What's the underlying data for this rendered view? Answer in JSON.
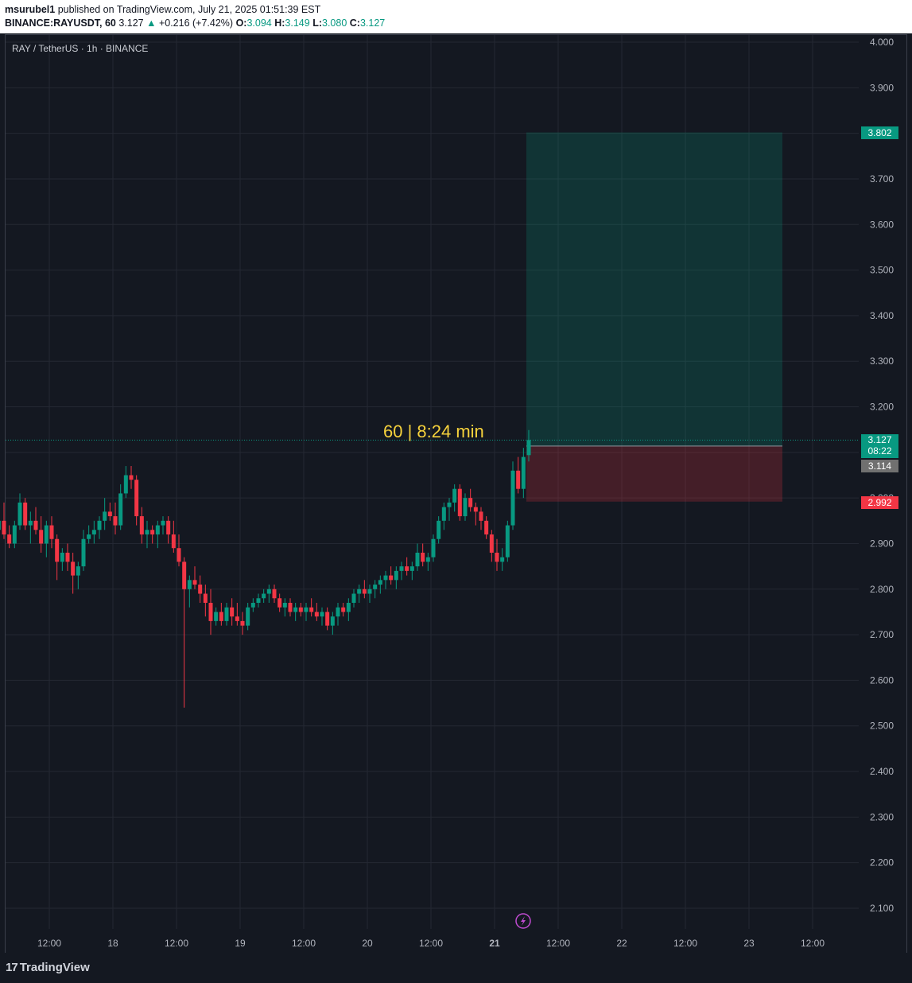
{
  "header": {
    "author": "msurubel1",
    "published_text": " published on TradingView.com, July 21, 2025 01:51:39 EST",
    "symbol": "BINANCE:RAYUSDT, 60",
    "last": "3.127",
    "change": "+0.216 (+7.42%)",
    "open_label": "O:",
    "open": "3.094",
    "high_label": "H:",
    "high": "3.149",
    "low_label": "L:",
    "low": "3.080",
    "close_label": "C:",
    "close": "3.127"
  },
  "legend": "RAY / TetherUS · 1h · BINANCE",
  "annotation": "60 | 8:24 min",
  "badges": {
    "target": "3.802",
    "current": "3.127",
    "countdown": "08:22",
    "entry": "3.114",
    "stop": "2.992"
  },
  "colors": {
    "up": "#089981",
    "down": "#f23645",
    "background": "#141821",
    "grid": "#242833",
    "annotation": "#f7d23c"
  },
  "footer": {
    "logo_mark": "17",
    "logo_text": "TradingView"
  },
  "chart_data": {
    "type": "candlestick",
    "title": "RAY / TetherUS · 1h · BINANCE",
    "ylim": [
      2.03,
      4.02
    ],
    "y_ticks": [
      "4.000",
      "3.900",
      "3.800",
      "3.700",
      "3.600",
      "3.500",
      "3.400",
      "3.300",
      "3.200",
      "3.100",
      "3.000",
      "2.900",
      "2.800",
      "2.700",
      "2.600",
      "2.500",
      "2.400",
      "2.300",
      "2.200",
      "2.100"
    ],
    "x_ticks": [
      "12:00",
      "18",
      "12:00",
      "19",
      "12:00",
      "20",
      "12:00",
      "21",
      "12:00",
      "22",
      "12:00",
      "23",
      "12:00"
    ],
    "x_tick_values": [
      12,
      24,
      36,
      48,
      60,
      72,
      84,
      96,
      108,
      120,
      132,
      144,
      156
    ],
    "bar_hours": 1,
    "candles": [
      [
        0,
        2.88,
        2.92,
        2.87,
        2.91
      ],
      [
        1,
        2.91,
        2.94,
        2.89,
        2.93
      ],
      [
        2,
        2.93,
        2.97,
        2.91,
        2.95
      ],
      [
        3,
        2.95,
        2.99,
        2.91,
        2.92
      ],
      [
        4,
        2.92,
        2.94,
        2.89,
        2.9
      ],
      [
        5,
        2.9,
        2.95,
        2.89,
        2.94
      ],
      [
        6,
        2.94,
        3.01,
        2.93,
        2.99
      ],
      [
        7,
        2.99,
        3.0,
        2.93,
        2.94
      ],
      [
        8,
        2.94,
        2.97,
        2.9,
        2.95
      ],
      [
        9,
        2.95,
        2.98,
        2.92,
        2.93
      ],
      [
        10,
        2.93,
        2.96,
        2.88,
        2.9
      ],
      [
        11,
        2.9,
        2.95,
        2.87,
        2.94
      ],
      [
        12,
        2.94,
        2.96,
        2.89,
        2.91
      ],
      [
        13,
        2.91,
        2.92,
        2.82,
        2.86
      ],
      [
        14,
        2.86,
        2.89,
        2.84,
        2.88
      ],
      [
        15,
        2.88,
        2.9,
        2.84,
        2.86
      ],
      [
        16,
        2.86,
        2.88,
        2.79,
        2.83
      ],
      [
        17,
        2.83,
        2.86,
        2.8,
        2.85
      ],
      [
        18,
        2.85,
        2.93,
        2.84,
        2.91
      ],
      [
        19,
        2.91,
        2.94,
        2.9,
        2.92
      ],
      [
        20,
        2.92,
        2.95,
        2.9,
        2.93
      ],
      [
        21,
        2.93,
        2.96,
        2.91,
        2.95
      ],
      [
        22,
        2.95,
        3.0,
        2.93,
        2.97
      ],
      [
        23,
        2.97,
        2.99,
        2.95,
        2.96
      ],
      [
        24,
        2.96,
        2.99,
        2.92,
        2.94
      ],
      [
        25,
        2.94,
        3.03,
        2.93,
        3.01
      ],
      [
        26,
        3.01,
        3.07,
        3.0,
        3.05
      ],
      [
        27,
        3.05,
        3.07,
        3.02,
        3.04
      ],
      [
        28,
        3.04,
        3.05,
        2.94,
        2.96
      ],
      [
        29,
        2.96,
        2.98,
        2.9,
        2.92
      ],
      [
        30,
        2.92,
        2.95,
        2.89,
        2.93
      ],
      [
        31,
        2.93,
        2.94,
        2.9,
        2.92
      ],
      [
        32,
        2.92,
        2.95,
        2.89,
        2.94
      ],
      [
        33,
        2.94,
        2.96,
        2.92,
        2.95
      ],
      [
        34,
        2.95,
        2.96,
        2.9,
        2.92
      ],
      [
        35,
        2.92,
        2.95,
        2.88,
        2.89
      ],
      [
        36,
        2.89,
        2.92,
        2.85,
        2.86
      ],
      [
        37,
        2.86,
        2.87,
        2.54,
        2.8
      ],
      [
        38,
        2.8,
        2.83,
        2.76,
        2.82
      ],
      [
        39,
        2.82,
        2.85,
        2.8,
        2.81
      ],
      [
        40,
        2.81,
        2.83,
        2.77,
        2.79
      ],
      [
        41,
        2.79,
        2.81,
        2.74,
        2.77
      ],
      [
        42,
        2.77,
        2.8,
        2.7,
        2.73
      ],
      [
        43,
        2.73,
        2.76,
        2.72,
        2.75
      ],
      [
        44,
        2.75,
        2.77,
        2.72,
        2.73
      ],
      [
        45,
        2.73,
        2.77,
        2.72,
        2.76
      ],
      [
        46,
        2.76,
        2.78,
        2.72,
        2.74
      ],
      [
        47,
        2.74,
        2.77,
        2.72,
        2.73
      ],
      [
        48,
        2.73,
        2.75,
        2.7,
        2.72
      ],
      [
        49,
        2.72,
        2.77,
        2.71,
        2.76
      ],
      [
        50,
        2.76,
        2.78,
        2.75,
        2.77
      ],
      [
        51,
        2.77,
        2.79,
        2.76,
        2.78
      ],
      [
        52,
        2.78,
        2.8,
        2.77,
        2.79
      ],
      [
        53,
        2.79,
        2.81,
        2.77,
        2.8
      ],
      [
        54,
        2.8,
        2.81,
        2.77,
        2.78
      ],
      [
        55,
        2.78,
        2.79,
        2.75,
        2.76
      ],
      [
        56,
        2.76,
        2.78,
        2.74,
        2.77
      ],
      [
        57,
        2.77,
        2.78,
        2.74,
        2.75
      ],
      [
        58,
        2.75,
        2.77,
        2.73,
        2.76
      ],
      [
        59,
        2.76,
        2.77,
        2.74,
        2.75
      ],
      [
        60,
        2.75,
        2.77,
        2.73,
        2.76
      ],
      [
        61,
        2.76,
        2.78,
        2.74,
        2.75
      ],
      [
        62,
        2.75,
        2.77,
        2.73,
        2.74
      ],
      [
        63,
        2.74,
        2.76,
        2.72,
        2.75
      ],
      [
        64,
        2.75,
        2.76,
        2.71,
        2.72
      ],
      [
        65,
        2.72,
        2.75,
        2.7,
        2.74
      ],
      [
        66,
        2.74,
        2.77,
        2.72,
        2.76
      ],
      [
        67,
        2.76,
        2.77,
        2.74,
        2.75
      ],
      [
        68,
        2.75,
        2.78,
        2.73,
        2.77
      ],
      [
        69,
        2.77,
        2.8,
        2.76,
        2.79
      ],
      [
        70,
        2.79,
        2.81,
        2.77,
        2.8
      ],
      [
        71,
        2.8,
        2.82,
        2.78,
        2.79
      ],
      [
        72,
        2.79,
        2.81,
        2.77,
        2.8
      ],
      [
        73,
        2.8,
        2.82,
        2.78,
        2.81
      ],
      [
        74,
        2.81,
        2.83,
        2.79,
        2.82
      ],
      [
        75,
        2.82,
        2.84,
        2.8,
        2.83
      ],
      [
        76,
        2.83,
        2.85,
        2.81,
        2.82
      ],
      [
        77,
        2.82,
        2.85,
        2.8,
        2.84
      ],
      [
        78,
        2.84,
        2.86,
        2.82,
        2.85
      ],
      [
        79,
        2.85,
        2.87,
        2.83,
        2.84
      ],
      [
        80,
        2.84,
        2.86,
        2.82,
        2.85
      ],
      [
        81,
        2.85,
        2.9,
        2.84,
        2.88
      ],
      [
        82,
        2.88,
        2.9,
        2.85,
        2.86
      ],
      [
        83,
        2.86,
        2.88,
        2.84,
        2.87
      ],
      [
        84,
        2.87,
        2.92,
        2.86,
        2.91
      ],
      [
        85,
        2.91,
        2.96,
        2.9,
        2.95
      ],
      [
        86,
        2.95,
        2.99,
        2.93,
        2.98
      ],
      [
        87,
        2.98,
        3.0,
        2.95,
        2.99
      ],
      [
        88,
        2.99,
        3.03,
        2.97,
        3.02
      ],
      [
        89,
        3.02,
        3.03,
        2.95,
        2.96
      ],
      [
        90,
        2.96,
        3.01,
        2.95,
        3.0
      ],
      [
        91,
        3.0,
        3.02,
        2.97,
        2.98
      ],
      [
        92,
        2.98,
        2.99,
        2.94,
        2.97
      ],
      [
        93,
        2.97,
        2.98,
        2.93,
        2.95
      ],
      [
        94,
        2.95,
        2.96,
        2.91,
        2.92
      ],
      [
        95,
        2.92,
        2.93,
        2.86,
        2.88
      ],
      [
        96,
        2.88,
        2.91,
        2.84,
        2.86
      ],
      [
        97,
        2.86,
        2.89,
        2.84,
        2.87
      ],
      [
        98,
        2.87,
        2.95,
        2.86,
        2.94
      ],
      [
        99,
        2.94,
        3.08,
        2.93,
        3.06
      ],
      [
        100,
        3.06,
        3.09,
        3.01,
        3.02
      ],
      [
        101,
        3.02,
        3.11,
        3.0,
        3.09
      ],
      [
        102,
        3.094,
        3.149,
        3.08,
        3.127
      ]
    ],
    "position": {
      "type": "long",
      "entry": 3.114,
      "target": 3.802,
      "stop": 2.992,
      "start_hour": 102,
      "end_hour": 143
    },
    "current_price": 3.127
  }
}
